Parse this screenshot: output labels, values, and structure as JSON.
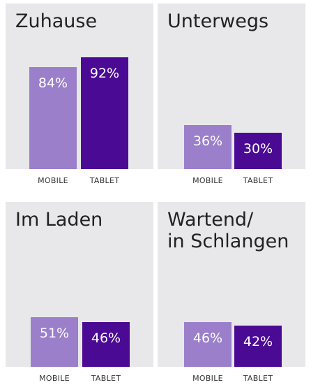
{
  "colors": {
    "mobile": "#9b7fcb",
    "tablet": "#4b0a94",
    "panel_bg": "#e8e8ea"
  },
  "chart_data": [
    {
      "type": "bar",
      "title": "Zuhause",
      "categories": [
        "MOBILE",
        "TABLET"
      ],
      "values": [
        84,
        92
      ],
      "labels": [
        "84%",
        "92%"
      ],
      "ylim": [
        0,
        100
      ]
    },
    {
      "type": "bar",
      "title": "Unterwegs",
      "categories": [
        "MOBILE",
        "TABLET"
      ],
      "values": [
        36,
        30
      ],
      "labels": [
        "36%",
        "30%"
      ],
      "ylim": [
        0,
        100
      ]
    },
    {
      "type": "bar",
      "title": "Im Laden",
      "categories": [
        "MOBILE",
        "TABLET"
      ],
      "values": [
        51,
        46
      ],
      "labels": [
        "51%",
        "46%"
      ],
      "ylim": [
        0,
        100
      ]
    },
    {
      "type": "bar",
      "title_lines": [
        "Wartend/",
        "in Schlangen"
      ],
      "categories": [
        "MOBILE",
        "TABLET"
      ],
      "values": [
        46,
        42
      ],
      "labels": [
        "46%",
        "42%"
      ],
      "ylim": [
        0,
        100
      ]
    }
  ]
}
